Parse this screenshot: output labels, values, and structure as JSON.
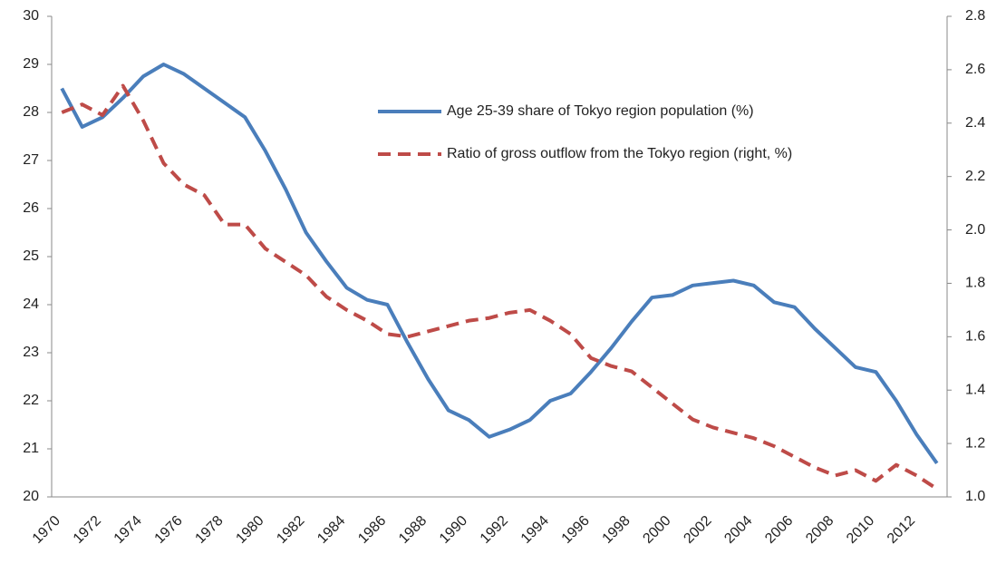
{
  "chart_data": {
    "type": "line",
    "categories": [
      "1970",
      null,
      "1972",
      null,
      "1974",
      null,
      "1976",
      null,
      "1978",
      null,
      "1980",
      null,
      "1982",
      null,
      "1984",
      null,
      "1986",
      null,
      "1988",
      null,
      "1990",
      null,
      "1992",
      null,
      "1994",
      null,
      "1996",
      null,
      "1998",
      null,
      "2000",
      null,
      "2002",
      null,
      "2004",
      null,
      "2006",
      null,
      "2008",
      null,
      "2010",
      null,
      "2012",
      null
    ],
    "series": [
      {
        "name": "Age 25-39 share of Tokyo region population (%)",
        "color": "#4a7ebb",
        "values": [
          28.5,
          27.7,
          27.9,
          28.3,
          28.75,
          29.0,
          28.8,
          28.5,
          28.2,
          27.9,
          27.2,
          26.4,
          25.5,
          24.9,
          24.35,
          24.1,
          24.0,
          23.2,
          22.45,
          21.8,
          21.6,
          21.25,
          21.4,
          21.6,
          22.0,
          22.15,
          22.6,
          23.1,
          23.65,
          24.15,
          24.2,
          24.4,
          24.45,
          24.5,
          24.4,
          24.05,
          23.95,
          23.5,
          23.1,
          22.7,
          22.6,
          22.0,
          21.3,
          20.7
        ]
      },
      {
        "name": "Ratio of gross outflow from the Tokyo region (right, %)",
        "color": "#be4b48",
        "axis": "y2",
        "dashed": true,
        "values": [
          2.44,
          2.47,
          2.43,
          2.54,
          2.41,
          2.25,
          2.17,
          2.13,
          2.02,
          2.02,
          1.93,
          1.88,
          1.83,
          1.75,
          1.7,
          1.66,
          1.61,
          1.6,
          1.62,
          1.64,
          1.66,
          1.67,
          1.69,
          1.7,
          1.66,
          1.61,
          1.52,
          1.49,
          1.47,
          1.41,
          1.35,
          1.29,
          1.26,
          1.24,
          1.22,
          1.19,
          1.15,
          1.11,
          1.08,
          1.1,
          1.06,
          1.12,
          1.08,
          1.03
        ]
      }
    ],
    "ylim": [
      20,
      30
    ],
    "yticks": [
      20,
      21,
      22,
      23,
      24,
      25,
      26,
      27,
      28,
      29,
      30
    ],
    "y2lim": [
      1,
      2.8
    ],
    "y2ticks": [
      {
        "value": 1,
        "label": "1.0"
      },
      1.2,
      1.4,
      1.6,
      1.8,
      {
        "value": 2,
        "label": "2.0"
      },
      2.2,
      2.4,
      2.6,
      2.8
    ],
    "grid": false
  }
}
